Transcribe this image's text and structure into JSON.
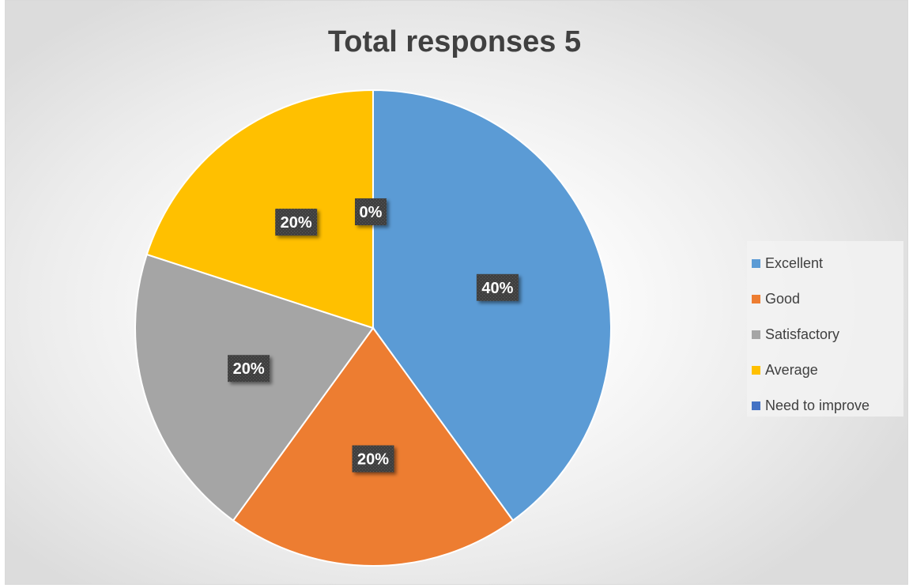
{
  "chart_data": {
    "type": "pie",
    "title": "Total responses 5",
    "categories": [
      "Excellent",
      "Good",
      "Satisfactory",
      "Average",
      "Need to improve"
    ],
    "values": [
      40,
      20,
      20,
      20,
      0
    ],
    "data_labels": [
      "40%",
      "20%",
      "20%",
      "20%",
      "0%"
    ],
    "colors": [
      "#5b9bd5",
      "#ed7d31",
      "#a5a5a5",
      "#ffc000",
      "#4472c4"
    ],
    "legend_position": "right"
  },
  "legend": {
    "items": [
      {
        "label": "Excellent",
        "color": "#5b9bd5"
      },
      {
        "label": "Good",
        "color": "#ed7d31"
      },
      {
        "label": "Satisfactory",
        "color": "#a5a5a5"
      },
      {
        "label": "Average",
        "color": "#ffc000"
      },
      {
        "label": "Need to improve",
        "color": "#4472c4"
      }
    ]
  }
}
